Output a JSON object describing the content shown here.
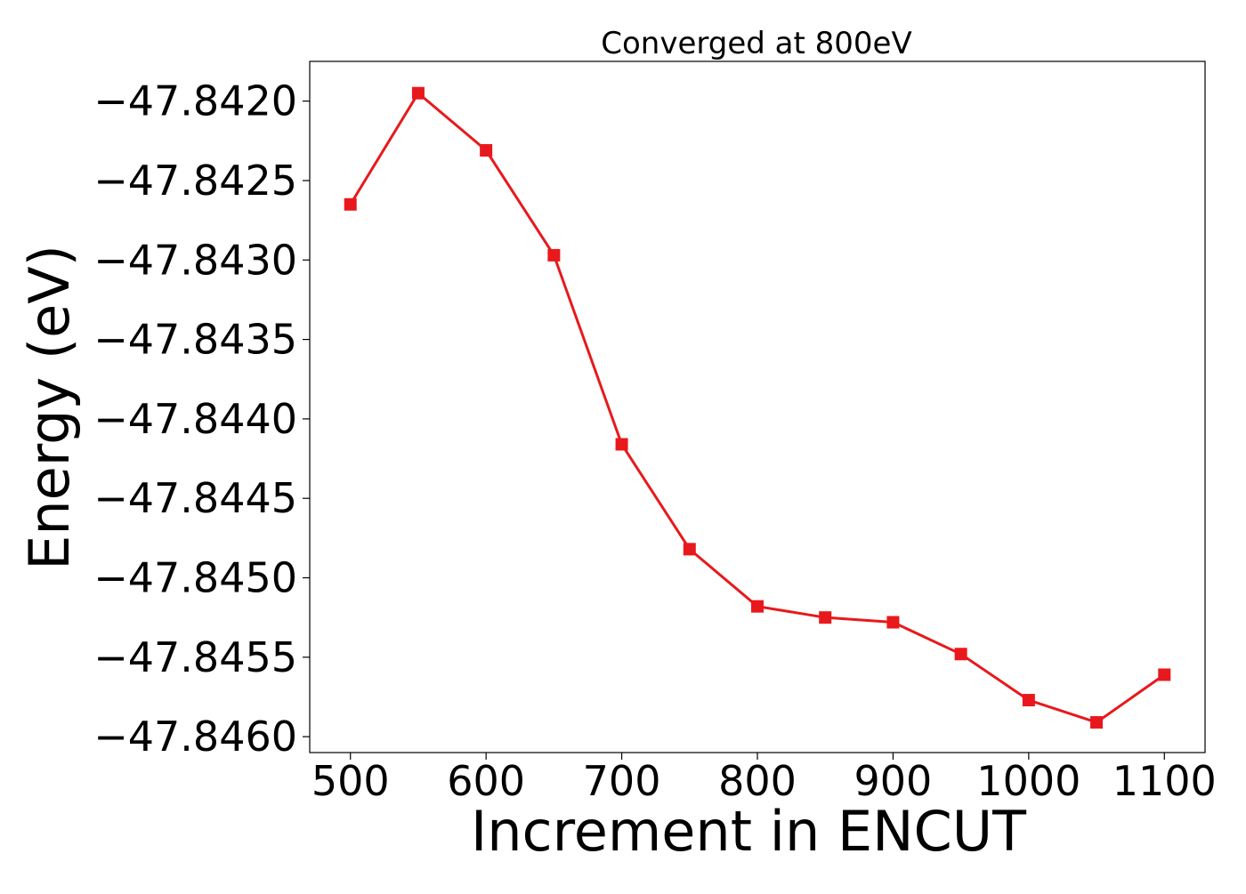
{
  "chart_data": {
    "type": "line",
    "title": "Converged at 800eV",
    "xlabel": "Increment in ENCUT",
    "ylabel": "Energy (eV)",
    "x": [
      500,
      550,
      600,
      650,
      700,
      750,
      800,
      850,
      900,
      950,
      1000,
      1050,
      1100
    ],
    "series": [
      {
        "values": [
          -47.84265,
          -47.84195,
          -47.84231,
          -47.84297,
          -47.84416,
          -47.84482,
          -47.84518,
          -47.84525,
          -47.84528,
          -47.84548,
          -47.84577,
          -47.84591,
          -47.84561
        ],
        "color": "#e8191c",
        "marker": "square"
      }
    ],
    "xlim": [
      470,
      1130
    ],
    "ylim": [
      -47.8461,
      -47.84175
    ],
    "xticks": [
      500,
      600,
      700,
      800,
      900,
      1000,
      1100
    ],
    "xtick_labels": [
      "500",
      "600",
      "700",
      "800",
      "900",
      "1000",
      "1100"
    ],
    "yticks": [
      -47.842,
      -47.8425,
      -47.843,
      -47.8435,
      -47.844,
      -47.8445,
      -47.845,
      -47.8455,
      -47.846
    ],
    "ytick_labels": [
      "−47.8420",
      "−47.8425",
      "−47.8430",
      "−47.8435",
      "−47.8440",
      "−47.8445",
      "−47.8450",
      "−47.8455",
      "−47.8460"
    ],
    "grid": false,
    "legend": "none"
  }
}
